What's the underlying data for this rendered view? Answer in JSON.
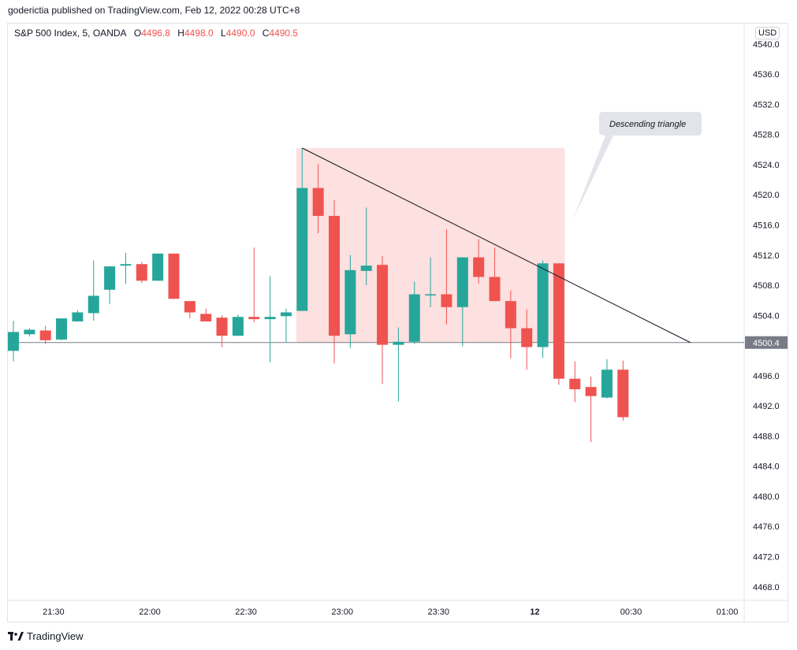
{
  "header": {
    "published": "goderictia published on TradingView.com, Feb 12, 2022 00:28 UTC+8"
  },
  "legend": {
    "symbol": "S&P 500 Index, 5, OANDA",
    "open_label": "O",
    "open": "4496.8",
    "high_label": "H",
    "high": "4498.0",
    "low_label": "L",
    "low": "4490.0",
    "close_label": "C",
    "close": "4490.5"
  },
  "currency": "USD",
  "last_price_label": "4500.4",
  "footer": {
    "brand": "TradingView"
  },
  "chart_data": {
    "type": "candlestick",
    "interval": "5",
    "y_ticks": [
      4468.0,
      4472.0,
      4476.0,
      4480.0,
      4484.0,
      4488.0,
      4492.0,
      4496.0,
      4500.0,
      4504.0,
      4508.0,
      4512.0,
      4516.0,
      4520.0,
      4524.0,
      4528.0,
      4532.0,
      4536.0,
      4540.0
    ],
    "ylim": [
      4466.2,
      4542.7
    ],
    "x_ticks": [
      {
        "label": "21:30",
        "index": 2.5
      },
      {
        "label": "22:00",
        "index": 8.5
      },
      {
        "label": "22:30",
        "index": 14.5
      },
      {
        "label": "23:00",
        "index": 20.5
      },
      {
        "label": "23:30",
        "index": 26.5
      },
      {
        "label": "12",
        "index": 32.5
      },
      {
        "label": "00:30",
        "index": 38.5
      },
      {
        "label": "01:00",
        "index": 44.5
      }
    ],
    "candles": [
      {
        "o": 4499.3,
        "h": 4503.3,
        "l": 4497.9,
        "c": 4501.8
      },
      {
        "o": 4501.5,
        "h": 4502.3,
        "l": 4501.2,
        "c": 4502.1
      },
      {
        "o": 4502.0,
        "h": 4502.6,
        "l": 4500.2,
        "c": 4500.7
      },
      {
        "o": 4500.8,
        "h": 4503.6,
        "l": 4500.7,
        "c": 4503.6
      },
      {
        "o": 4503.2,
        "h": 4504.7,
        "l": 4503.2,
        "c": 4504.4
      },
      {
        "o": 4504.3,
        "h": 4511.3,
        "l": 4503.3,
        "c": 4506.6
      },
      {
        "o": 4507.4,
        "h": 4510.5,
        "l": 4505.5,
        "c": 4510.5
      },
      {
        "o": 4510.6,
        "h": 4512.3,
        "l": 4508.2,
        "c": 4510.8
      },
      {
        "o": 4510.8,
        "h": 4511.1,
        "l": 4508.3,
        "c": 4508.6
      },
      {
        "o": 4508.6,
        "h": 4512.2,
        "l": 4508.6,
        "c": 4512.2
      },
      {
        "o": 4512.2,
        "h": 4512.2,
        "l": 4506.2,
        "c": 4506.2
      },
      {
        "o": 4505.9,
        "h": 4505.9,
        "l": 4503.6,
        "c": 4504.4
      },
      {
        "o": 4504.2,
        "h": 4504.9,
        "l": 4503.2,
        "c": 4503.2
      },
      {
        "o": 4503.7,
        "h": 4504.0,
        "l": 4499.8,
        "c": 4501.3
      },
      {
        "o": 4501.3,
        "h": 4504.1,
        "l": 4501.3,
        "c": 4503.8
      },
      {
        "o": 4503.8,
        "h": 4513.0,
        "l": 4503.1,
        "c": 4503.5
      },
      {
        "o": 4503.5,
        "h": 4509.2,
        "l": 4497.8,
        "c": 4503.8
      },
      {
        "o": 4503.9,
        "h": 4504.9,
        "l": 4500.4,
        "c": 4504.4
      },
      {
        "o": 4504.6,
        "h": 4526.2,
        "l": 4504.6,
        "c": 4520.9
      },
      {
        "o": 4520.9,
        "h": 4524.1,
        "l": 4514.9,
        "c": 4517.2
      },
      {
        "o": 4517.2,
        "h": 4519.3,
        "l": 4497.6,
        "c": 4501.3
      },
      {
        "o": 4501.5,
        "h": 4512.0,
        "l": 4499.7,
        "c": 4510.0
      },
      {
        "o": 4509.9,
        "h": 4518.3,
        "l": 4508.0,
        "c": 4510.6
      },
      {
        "o": 4510.7,
        "h": 4511.9,
        "l": 4494.9,
        "c": 4500.1
      },
      {
        "o": 4500.1,
        "h": 4502.4,
        "l": 4492.6,
        "c": 4500.5
      },
      {
        "o": 4500.5,
        "h": 4508.5,
        "l": 4500.2,
        "c": 4506.8
      },
      {
        "o": 4506.7,
        "h": 4511.7,
        "l": 4505.1,
        "c": 4506.8
      },
      {
        "o": 4506.8,
        "h": 4515.4,
        "l": 4502.8,
        "c": 4505.1
      },
      {
        "o": 4505.1,
        "h": 4511.7,
        "l": 4499.9,
        "c": 4511.7
      },
      {
        "o": 4511.7,
        "h": 4514.1,
        "l": 4508.2,
        "c": 4509.1
      },
      {
        "o": 4509.1,
        "h": 4513.0,
        "l": 4505.9,
        "c": 4505.9
      },
      {
        "o": 4505.9,
        "h": 4507.3,
        "l": 4498.3,
        "c": 4502.3
      },
      {
        "o": 4502.3,
        "h": 4504.8,
        "l": 4496.8,
        "c": 4499.8
      },
      {
        "o": 4499.8,
        "h": 4511.3,
        "l": 4498.4,
        "c": 4510.9
      },
      {
        "o": 4510.9,
        "h": 4510.9,
        "l": 4494.8,
        "c": 4495.6
      },
      {
        "o": 4495.6,
        "h": 4497.9,
        "l": 4492.5,
        "c": 4494.2
      },
      {
        "o": 4494.5,
        "h": 4495.9,
        "l": 4487.2,
        "c": 4493.3
      },
      {
        "o": 4493.1,
        "h": 4498.2,
        "l": 4493.0,
        "c": 4496.8
      },
      {
        "o": 4496.8,
        "h": 4498.0,
        "l": 4490.0,
        "c": 4490.5
      }
    ],
    "annotations": {
      "triangle": {
        "rect": {
          "i_start": 18,
          "i_end": 34,
          "p_low": 4500.4,
          "p_high": 4526.2
        },
        "trendline": {
          "i_start": 18,
          "p_start": 4526.2,
          "i_end": 42.2,
          "p_end": 4500.4
        },
        "label": "Descending triangle"
      },
      "last_price": 4500.4
    },
    "colors": {
      "up": "#26a69a",
      "down": "#ef5350",
      "zone": "#fde0e0",
      "line": "#131722",
      "axis_label_bg": "#787b86"
    }
  }
}
